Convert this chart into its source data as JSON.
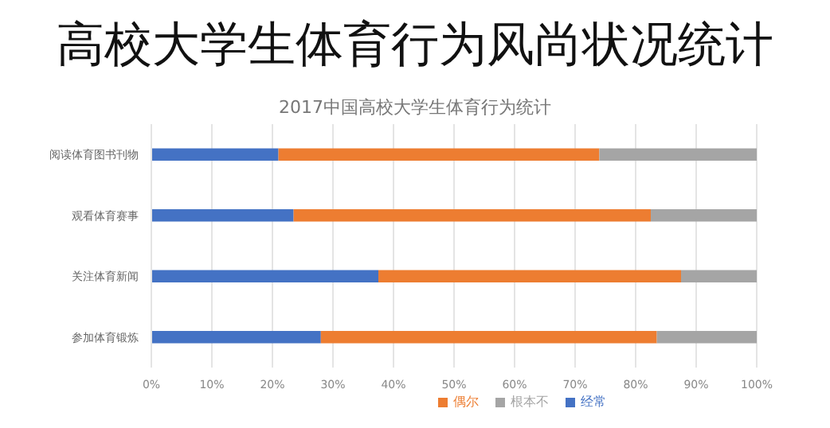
{
  "chart_data": {
    "type": "bar",
    "orientation": "horizontal",
    "stacked": true,
    "title": "高校大学生体育行为风尚状况统计",
    "subtitle": "2017中国高校大学生体育行为统计",
    "categories": [
      "阅读体育图书刊物",
      "观看体育赛事",
      "关注体育新闻",
      "参加体育锻炼"
    ],
    "series": [
      {
        "name": "经常",
        "color": "#4472c4",
        "values": [
          21,
          23.5,
          37.5,
          28
        ]
      },
      {
        "name": "偶尔",
        "color": "#ed7d31",
        "values": [
          53,
          59,
          50,
          55.5
        ]
      },
      {
        "name": "根本不",
        "color": "#a5a5a5",
        "values": [
          26,
          17.5,
          12.5,
          16.5
        ]
      }
    ],
    "xlim": [
      0,
      100
    ],
    "xticks": [
      {
        "value": 0,
        "label": "0%"
      },
      {
        "value": 10,
        "label": "10%"
      },
      {
        "value": 20,
        "label": "20%"
      },
      {
        "value": 30,
        "label": "30%"
      },
      {
        "value": 40,
        "label": "40%"
      },
      {
        "value": 50,
        "label": "50%"
      },
      {
        "value": 60,
        "label": "60%"
      },
      {
        "value": 70,
        "label": "70%"
      },
      {
        "value": 80,
        "label": "80%"
      },
      {
        "value": 90,
        "label": "90%"
      },
      {
        "value": 100,
        "label": "100%"
      }
    ],
    "grid": "x",
    "legend": "bottom"
  }
}
